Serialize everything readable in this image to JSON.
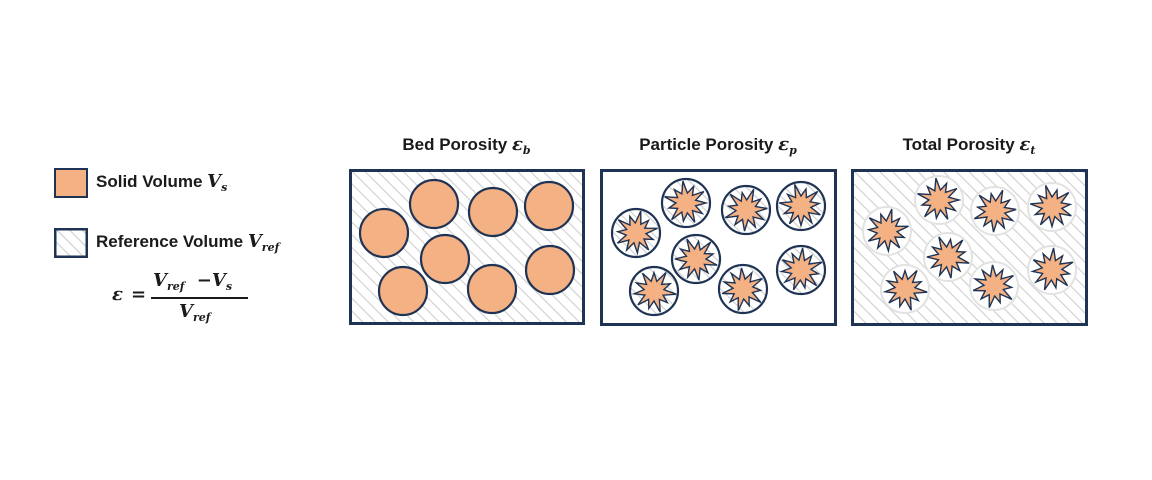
{
  "colors": {
    "solid_fill": "#f4b183",
    "border": "#1f3354",
    "hatch_line": "#cfcfcf",
    "hatch_bg": "#ffffff"
  },
  "legend": {
    "solid": {
      "label": "Solid Volume",
      "symbol": "V",
      "subscript": "s"
    },
    "reference": {
      "label": "Reference Volume",
      "symbol": "V",
      "subscript": "ref"
    }
  },
  "formula": {
    "lhs": "ε",
    "equals": "=",
    "numerator_v1": "V",
    "numerator_sub1": "ref",
    "minus": "−",
    "numerator_v2": "V",
    "numerator_sub2": "s",
    "denominator_v": "V",
    "denominator_sub": "ref"
  },
  "panels": [
    {
      "title": "Bed Porosity",
      "symbol": "ε",
      "subscript": "b"
    },
    {
      "title": "Particle Porosity",
      "symbol": "ε",
      "subscript": "p"
    },
    {
      "title": "Total Porosity",
      "symbol": "ε",
      "subscript": "t"
    }
  ]
}
